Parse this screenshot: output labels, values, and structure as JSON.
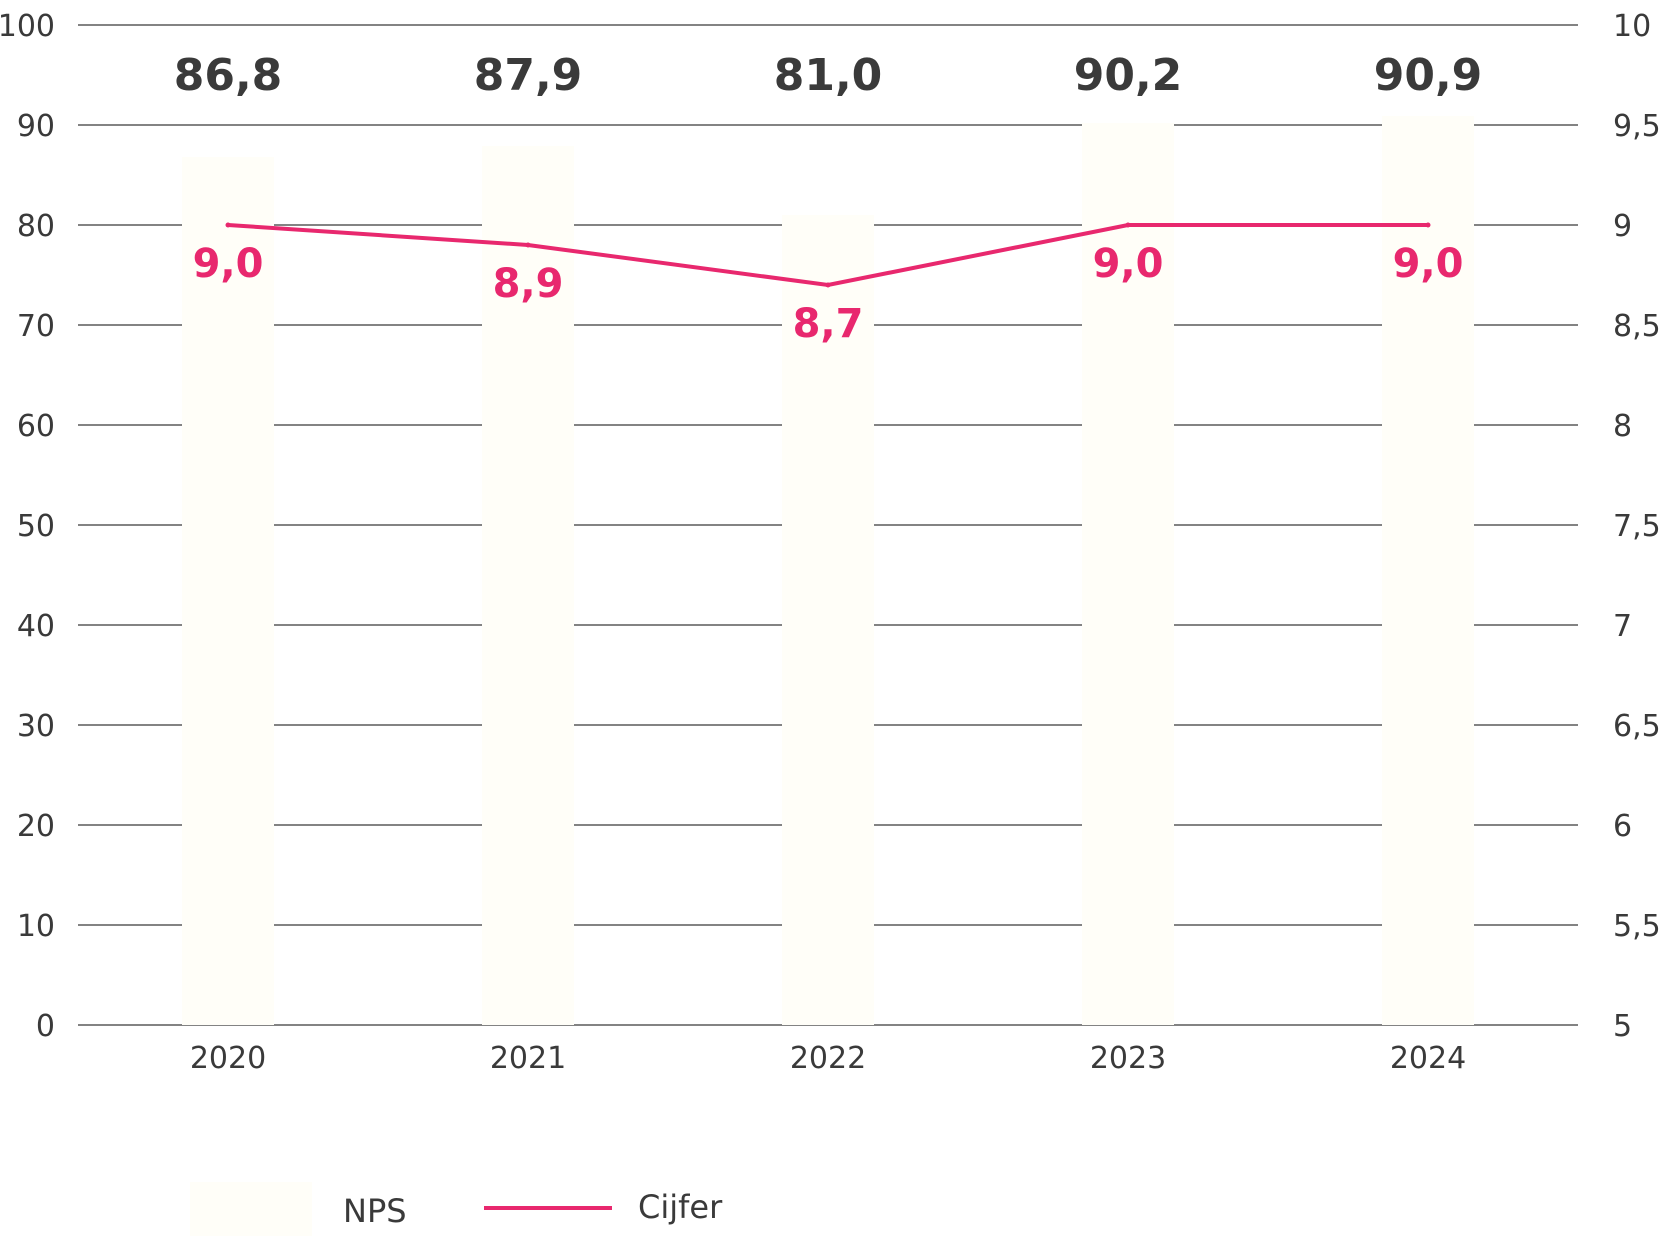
{
  "chart_data": {
    "type": "bar",
    "categories": [
      "2020",
      "2021",
      "2022",
      "2023",
      "2024"
    ],
    "series": [
      {
        "name": "NPS",
        "type": "bar",
        "axis": "left",
        "values": [
          86.8,
          87.9,
          81.0,
          90.2,
          90.9
        ],
        "labels": [
          "86,8",
          "87,9",
          "81,0",
          "90,2",
          "90,9"
        ],
        "color": "#fffef8"
      },
      {
        "name": "Cijfer",
        "type": "line",
        "axis": "right",
        "values": [
          9.0,
          8.9,
          8.7,
          9.0,
          9.0
        ],
        "labels": [
          "9,0",
          "8,9",
          "8,7",
          "9,0",
          "9,0"
        ],
        "color": "#e8286e"
      }
    ],
    "y_left": {
      "ylim": [
        0,
        100
      ],
      "ticks": [
        "0",
        "10",
        "20",
        "30",
        "40",
        "50",
        "60",
        "70",
        "80",
        "90",
        "100"
      ]
    },
    "y_right": {
      "ylim": [
        5,
        10
      ],
      "ticks": [
        "5",
        "5,5",
        "6",
        "6,5",
        "7",
        "7,5",
        "8",
        "8,5",
        "9",
        "9,5",
        "10"
      ]
    },
    "grid": true,
    "gridColor": "#5a5a5a",
    "textColor": "#3a3a3a",
    "legend": {
      "position": "bottom-left",
      "items": [
        {
          "label": "NPS",
          "symbol": "box",
          "color": "#fffef8"
        },
        {
          "label": "Cijfer",
          "symbol": "line",
          "color": "#e8286e"
        }
      ]
    }
  }
}
